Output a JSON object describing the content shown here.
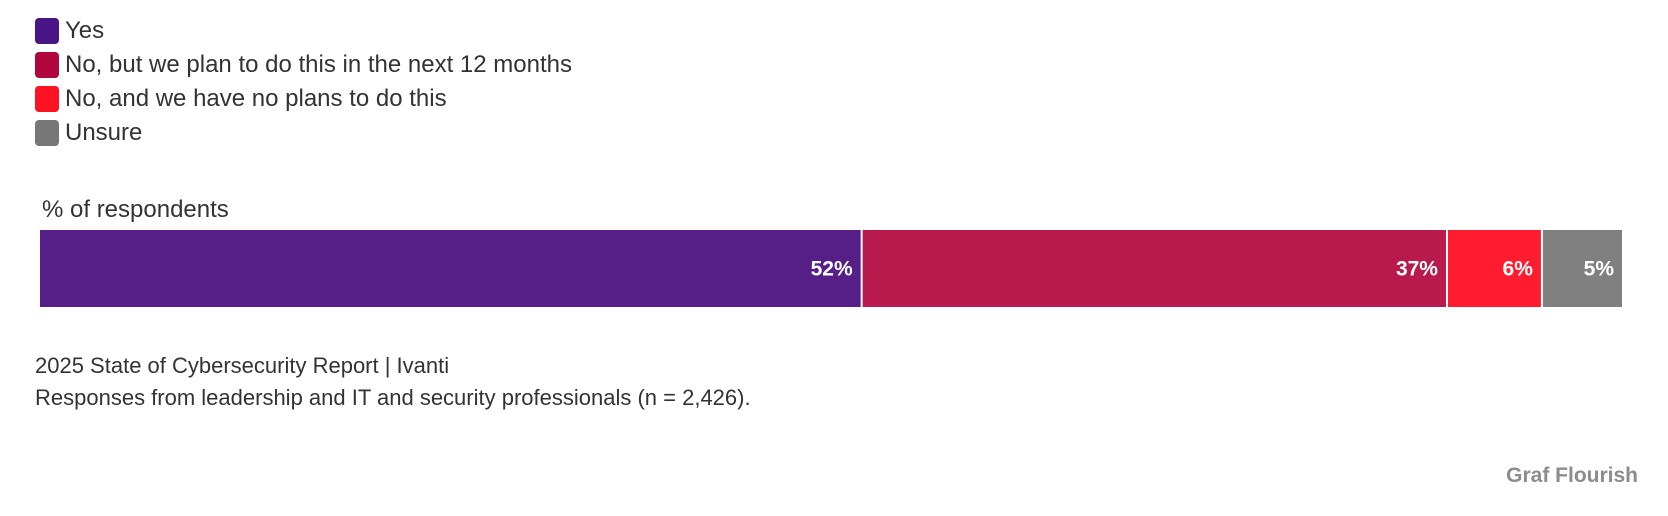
{
  "chart_data": {
    "type": "bar",
    "orientation": "horizontal-stacked-100",
    "categories": [
      "% of respondents"
    ],
    "series": [
      {
        "name": "Yes",
        "values": [
          52
        ],
        "label": "52%",
        "color": "#551f87"
      },
      {
        "name": "No, but we plan to do this in the next 12 months",
        "values": [
          37
        ],
        "label": "37%",
        "color": "#b81a4e"
      },
      {
        "name": "No, and we have no plans to do this",
        "values": [
          6
        ],
        "label": "6%",
        "color": "#ff1c2e"
      },
      {
        "name": "Unsure",
        "values": [
          5
        ],
        "label": "5%",
        "color": "#808080"
      }
    ],
    "xlim": [
      0,
      100
    ],
    "legend": "top-left",
    "grid": false
  },
  "legend": {
    "items": [
      {
        "label": "Yes",
        "color": "#4a1585"
      },
      {
        "label": "No, but we plan to do this in the next 12 months",
        "color": "#b0073f"
      },
      {
        "label": "No, and we have no plans to do this",
        "color": "#ff1221"
      },
      {
        "label": "Unsure",
        "color": "#777777"
      }
    ]
  },
  "axis_label": "% of respondents",
  "footer": {
    "source_line1": "2025 State of Cybersecurity Report | Ivanti",
    "source_line2": "Responses from leadership and IT and security professionals (n = 2,426)."
  },
  "credit": "Graf Flourish"
}
